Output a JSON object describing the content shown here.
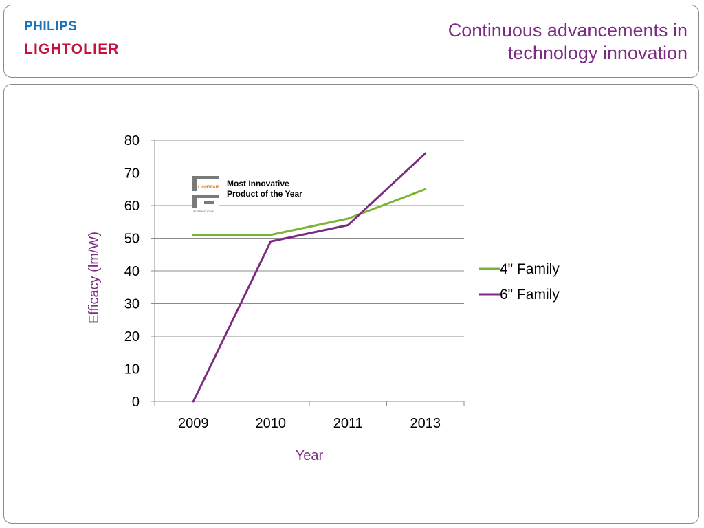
{
  "header": {
    "logo_line1": "PHILIPS",
    "logo_line2": "LIGHTOLIER",
    "title_line1": "Continuous advancements in",
    "title_line2": "technology innovation"
  },
  "colors": {
    "title": "#7b2c82",
    "philips_blue": "#1a73ba",
    "lightolier_red": "#c4123f",
    "series_4in": "#7ab532",
    "series_6in": "#7b2c82",
    "gridline": "#8c8c8c"
  },
  "award": {
    "line1": "Most Innovative",
    "line2": "Product of the Year",
    "logo_text": "LIGHTFAIR",
    "logo_subtext": "INTERNATIONAL",
    "logo_icon": "lightfair-logo"
  },
  "chart_data": {
    "type": "line",
    "categories": [
      "2009",
      "2010",
      "2011",
      "2013"
    ],
    "series": [
      {
        "name": "4\" Family",
        "color": "#7ab532",
        "values": [
          51,
          51,
          56,
          65
        ]
      },
      {
        "name": "6\" Family",
        "color": "#7b2c82",
        "values": [
          0,
          49,
          54,
          76
        ]
      }
    ],
    "xlabel": "Year",
    "ylabel": "Efficacy (lm/W)",
    "ylim": [
      0,
      80
    ],
    "yticks": [
      0,
      10,
      20,
      30,
      40,
      50,
      60,
      70,
      80
    ],
    "grid": true,
    "legend": "right"
  }
}
